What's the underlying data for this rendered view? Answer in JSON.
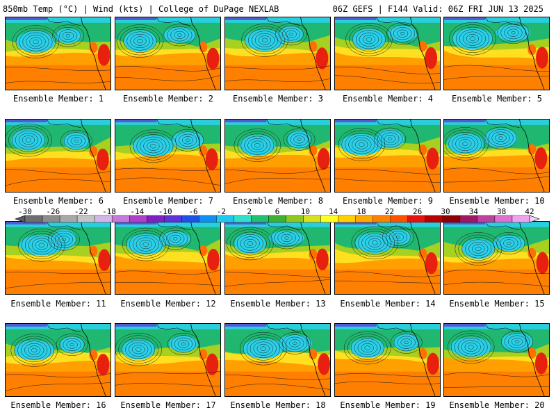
{
  "header": {
    "left": "850mb Temp (°C) | Wind (kts) | College of DuPage NEXLAB",
    "right": "06Z GEFS | F144 Valid: 06Z FRI JUN 13 2025"
  },
  "members": [
    "Ensemble Member: 1",
    "Ensemble Member: 2",
    "Ensemble Member: 3",
    "Ensemble Member: 4",
    "Ensemble Member: 5",
    "Ensemble Member: 6",
    "Ensemble Member: 7",
    "Ensemble Member: 8",
    "Ensemble Member: 9",
    "Ensemble Member: 10",
    "Ensemble Member: 11",
    "Ensemble Member: 12",
    "Ensemble Member: 13",
    "Ensemble Member: 14",
    "Ensemble Member: 15",
    "Ensemble Member: 16",
    "Ensemble Member: 17",
    "Ensemble Member: 18",
    "Ensemble Member: 19",
    "Ensemble Member: 20"
  ],
  "colorbar": {
    "labels": [
      "-30",
      "-26",
      "-22",
      "-18",
      "-14",
      "-10",
      "-6",
      "-2",
      "2",
      "6",
      "10",
      "14",
      "18",
      "22",
      "26",
      "30",
      "34",
      "38",
      "42"
    ],
    "colors": [
      "#6e6e6e",
      "#8c8c8c",
      "#a8a8a8",
      "#c4c4c4",
      "#d6b4e8",
      "#c47ad8",
      "#b040c8",
      "#8020c0",
      "#6030d8",
      "#2050e8",
      "#1090f0",
      "#20c8f0",
      "#30e0c8",
      "#20c070",
      "#40b030",
      "#90c820",
      "#d8e020",
      "#ffff20",
      "#ffd000",
      "#ffa800",
      "#ff8000",
      "#ff5000",
      "#e81010",
      "#b80000",
      "#900000",
      "#a01860",
      "#c040a0",
      "#e070d0",
      "#f0a0f0"
    ]
  },
  "map_colors": {
    "cold": "#2ad0e8",
    "cool": "#20b870",
    "mild": "#a8d020",
    "warm": "#ffe020",
    "hot": "#ffa000",
    "veryhot": "#ff7000",
    "extreme": "#e82010",
    "contour": "#1a1a1a",
    "coast": "#000000"
  }
}
